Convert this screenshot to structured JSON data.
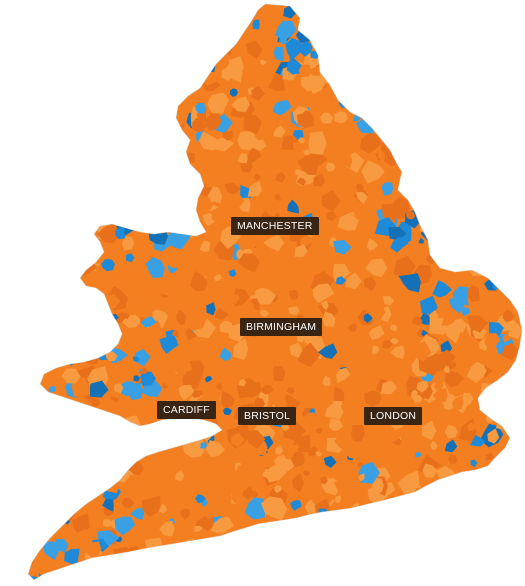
{
  "map": {
    "colors": {
      "orange": "#f47f20",
      "orange_light": "#f89a40",
      "orange_dark": "#e8701a",
      "blue": "#1e8ad8",
      "blue_light": "#3aa0e4",
      "blue_dark": "#1471b8",
      "label_bg": "#3a2414",
      "label_text": "#ffffff"
    },
    "labels": {
      "manchester": "MANCHESTER",
      "birmingham": "BIRMINGHAM",
      "cardiff": "CARDIFF",
      "bristol": "BRISTOL",
      "london": "LONDON"
    }
  }
}
